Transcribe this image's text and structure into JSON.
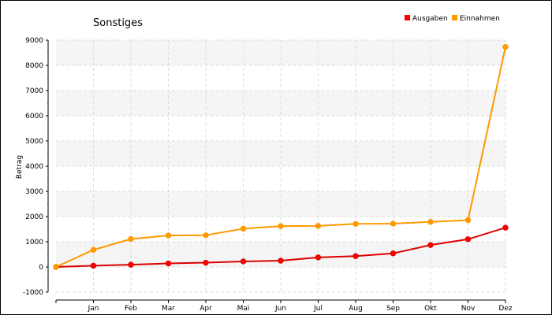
{
  "chart_data": {
    "type": "line",
    "title": "Sonstiges",
    "xlabel": "",
    "ylabel": "Betrag",
    "categories": [
      "",
      "Jan",
      "Feb",
      "Mar",
      "Apr",
      "Mai",
      "Jun",
      "Jul",
      "Aug",
      "Sep",
      "Okt",
      "Nov",
      "Dez"
    ],
    "ylim": [
      -1000,
      9000
    ],
    "yticks": [
      -1000,
      0,
      1000,
      2000,
      3000,
      4000,
      5000,
      6000,
      7000,
      8000,
      9000
    ],
    "grid": true,
    "legend_position": "top-right",
    "series": [
      {
        "name": "Ausgaben",
        "color": "#ff0000",
        "line_color": "#dd0000",
        "values": [
          0,
          50,
          90,
          140,
          170,
          220,
          250,
          380,
          430,
          540,
          870,
          1100,
          1560
        ]
      },
      {
        "name": "Einnahmen",
        "color": "#ff9900",
        "line_color": "#ff9900",
        "values": [
          0,
          680,
          1110,
          1250,
          1260,
          1520,
          1620,
          1630,
          1710,
          1720,
          1790,
          1860,
          8730
        ]
      }
    ]
  }
}
